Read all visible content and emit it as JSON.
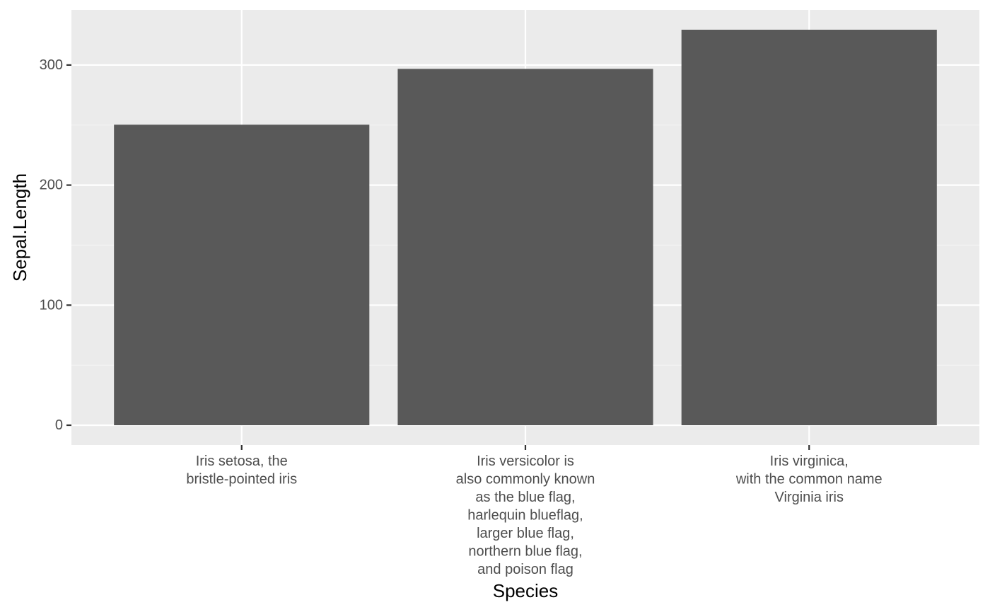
{
  "chart_data": {
    "type": "bar",
    "categories": [
      [
        "Iris setosa, the",
        "bristle-pointed iris"
      ],
      [
        "Iris versicolor is",
        "also commonly known",
        "as the blue flag,",
        "harlequin blueflag,",
        "larger blue flag,",
        "northern blue flag,",
        "and poison flag"
      ],
      [
        "Iris virginica,",
        "with the common name",
        "Virginia iris"
      ]
    ],
    "values": [
      250.3,
      296.8,
      329.4
    ],
    "xlabel": "Species",
    "ylabel": "Sepal.Length",
    "yticks": [
      0,
      100,
      200,
      300
    ],
    "ylim": [
      -16.5,
      345.9
    ],
    "grid": true,
    "colors": {
      "panel_bg": "#ebebeb",
      "grid_major": "#ffffff",
      "grid_minor": "#f5f5f5",
      "bar": "#595959",
      "axis_tick": "#333333",
      "tick_text": "#4d4d4d"
    }
  }
}
